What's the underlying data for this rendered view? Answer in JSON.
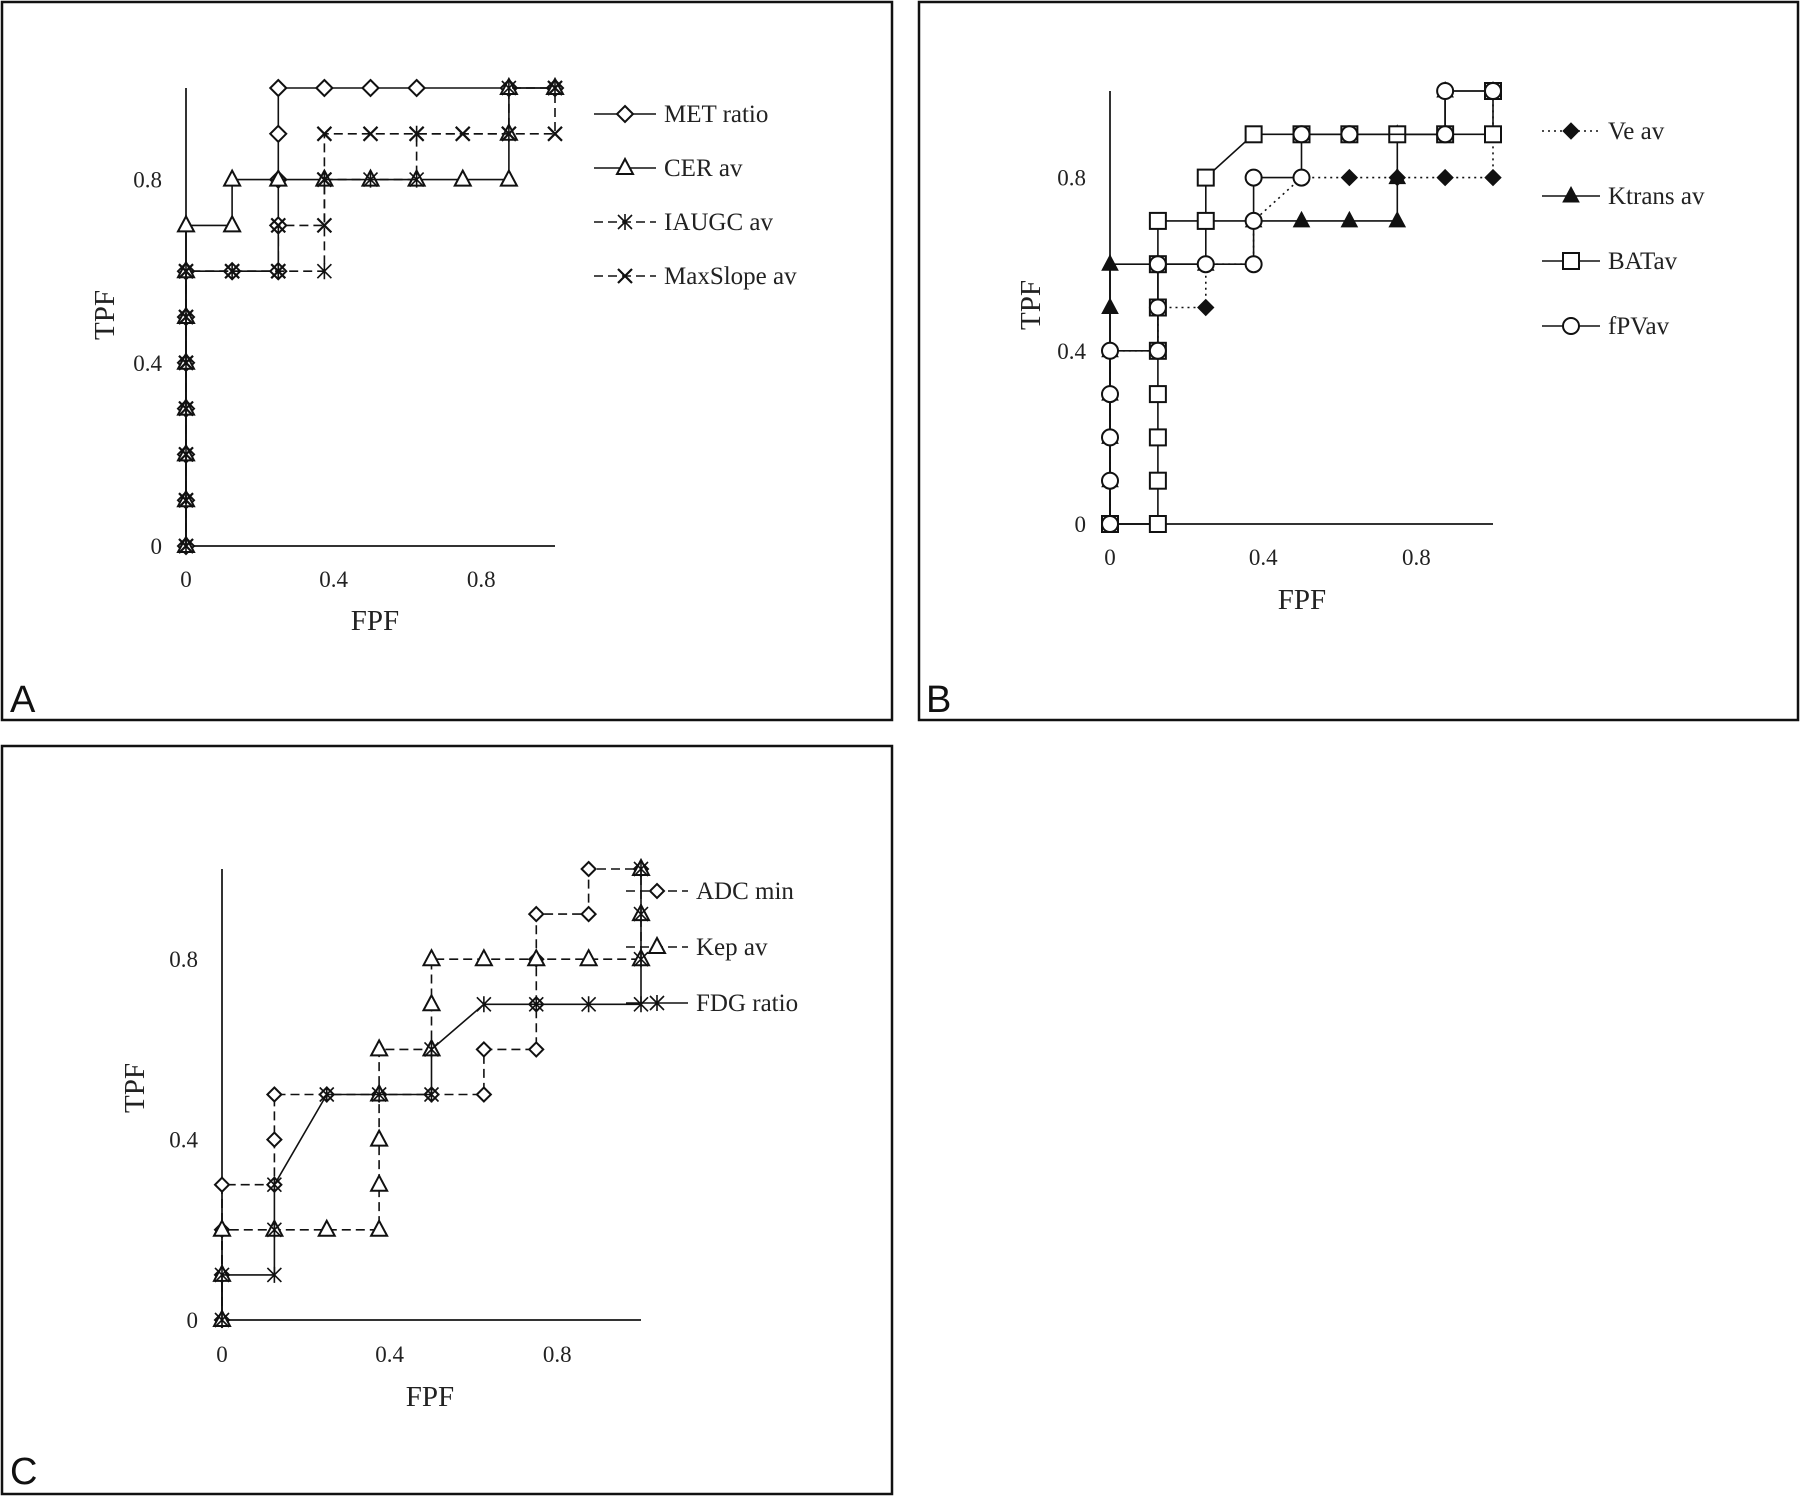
{
  "chart_data": [
    {
      "type": "line",
      "panel_label": "A",
      "xlabel": "FPF",
      "ylabel": "TPF",
      "xlim": [
        0,
        1
      ],
      "ylim": [
        0,
        1
      ],
      "xticks": [
        "0",
        "0.4",
        "0.8"
      ],
      "yticks": [
        "0",
        "0.4",
        "0.8"
      ],
      "grid": false,
      "legend_position": "right",
      "series": [
        {
          "name": "MET ratio",
          "marker": "diamond-open",
          "line": "solid",
          "points": [
            [
              0,
              0
            ],
            [
              0,
              0.1
            ],
            [
              0,
              0.2
            ],
            [
              0,
              0.3
            ],
            [
              0,
              0.4
            ],
            [
              0,
              0.5
            ],
            [
              0,
              0.6
            ],
            [
              0.125,
              0.6
            ],
            [
              0.25,
              0.6
            ],
            [
              0.25,
              0.7
            ],
            [
              0.25,
              0.8
            ],
            [
              0.25,
              0.9
            ],
            [
              0.25,
              1.0
            ],
            [
              0.375,
              1.0
            ],
            [
              0.5,
              1.0
            ],
            [
              0.625,
              1.0
            ],
            [
              0.875,
              1.0
            ],
            [
              1.0,
              1.0
            ]
          ]
        },
        {
          "name": "CER av",
          "marker": "triangle-open",
          "line": "solid",
          "points": [
            [
              0,
              0
            ],
            [
              0,
              0.1
            ],
            [
              0,
              0.2
            ],
            [
              0,
              0.3
            ],
            [
              0,
              0.4
            ],
            [
              0,
              0.5
            ],
            [
              0,
              0.6
            ],
            [
              0,
              0.7
            ],
            [
              0.125,
              0.7
            ],
            [
              0.125,
              0.8
            ],
            [
              0.25,
              0.8
            ],
            [
              0.375,
              0.8
            ],
            [
              0.5,
              0.8
            ],
            [
              0.625,
              0.8
            ],
            [
              0.75,
              0.8
            ],
            [
              0.875,
              0.8
            ],
            [
              0.875,
              0.9
            ],
            [
              0.875,
              1.0
            ],
            [
              1.0,
              1.0
            ]
          ]
        },
        {
          "name": "IAUGC av",
          "marker": "asterisk",
          "line": "dashed",
          "points": [
            [
              0,
              0
            ],
            [
              0,
              0.1
            ],
            [
              0,
              0.2
            ],
            [
              0,
              0.3
            ],
            [
              0,
              0.4
            ],
            [
              0,
              0.5
            ],
            [
              0,
              0.6
            ],
            [
              0.125,
              0.6
            ],
            [
              0.25,
              0.6
            ],
            [
              0.375,
              0.6
            ],
            [
              0.375,
              0.8
            ],
            [
              0.5,
              0.8
            ],
            [
              0.625,
              0.8
            ],
            [
              0.625,
              0.9
            ],
            [
              0.875,
              0.9
            ],
            [
              0.875,
              1.0
            ],
            [
              1.0,
              1.0
            ]
          ]
        },
        {
          "name": "MaxSlope av",
          "marker": "cross",
          "line": "dashed",
          "points": [
            [
              0,
              0
            ],
            [
              0,
              0.1
            ],
            [
              0,
              0.2
            ],
            [
              0,
              0.3
            ],
            [
              0,
              0.4
            ],
            [
              0,
              0.5
            ],
            [
              0,
              0.6
            ],
            [
              0.125,
              0.6
            ],
            [
              0.25,
              0.6
            ],
            [
              0.25,
              0.7
            ],
            [
              0.375,
              0.7
            ],
            [
              0.375,
              0.8
            ],
            [
              0.375,
              0.9
            ],
            [
              0.5,
              0.9
            ],
            [
              0.625,
              0.9
            ],
            [
              0.75,
              0.9
            ],
            [
              0.875,
              0.9
            ],
            [
              1.0,
              0.9
            ],
            [
              1.0,
              1.0
            ]
          ]
        }
      ]
    },
    {
      "type": "line",
      "panel_label": "B",
      "xlabel": "FPF",
      "ylabel": "TPF",
      "xlim": [
        0,
        1
      ],
      "ylim": [
        0,
        1
      ],
      "xticks": [
        "0",
        "0.4",
        "0.8"
      ],
      "yticks": [
        "0",
        "0.4",
        "0.8"
      ],
      "grid": false,
      "legend_position": "right",
      "series": [
        {
          "name": "Ve av",
          "marker": "diamond-filled",
          "line": "dotted",
          "points": [
            [
              0,
              0
            ],
            [
              0,
              0.1
            ],
            [
              0,
              0.2
            ],
            [
              0,
              0.3
            ],
            [
              0,
              0.4
            ],
            [
              0.125,
              0.4
            ],
            [
              0.125,
              0.5
            ],
            [
              0.25,
              0.5
            ],
            [
              0.25,
              0.6
            ],
            [
              0.375,
              0.6
            ],
            [
              0.375,
              0.7
            ],
            [
              0.5,
              0.8
            ],
            [
              0.625,
              0.8
            ],
            [
              0.75,
              0.8
            ],
            [
              0.875,
              0.8
            ],
            [
              1.0,
              0.8
            ],
            [
              1.0,
              0.9
            ],
            [
              1.0,
              1.0
            ]
          ]
        },
        {
          "name": "Ktrans av",
          "marker": "triangle-filled",
          "line": "solid",
          "points": [
            [
              0,
              0
            ],
            [
              0,
              0.1
            ],
            [
              0,
              0.2
            ],
            [
              0,
              0.3
            ],
            [
              0,
              0.4
            ],
            [
              0,
              0.5
            ],
            [
              0,
              0.6
            ],
            [
              0.125,
              0.6
            ],
            [
              0.25,
              0.6
            ],
            [
              0.25,
              0.7
            ],
            [
              0.375,
              0.7
            ],
            [
              0.5,
              0.7
            ],
            [
              0.625,
              0.7
            ],
            [
              0.75,
              0.7
            ],
            [
              0.75,
              0.8
            ],
            [
              0.75,
              0.9
            ],
            [
              0.875,
              0.9
            ],
            [
              0.875,
              1.0
            ],
            [
              1.0,
              1.0
            ]
          ]
        },
        {
          "name": "BATav",
          "marker": "square-open",
          "line": "solid",
          "points": [
            [
              0,
              0
            ],
            [
              0.125,
              0
            ],
            [
              0.125,
              0.1
            ],
            [
              0.125,
              0.2
            ],
            [
              0.125,
              0.3
            ],
            [
              0.125,
              0.4
            ],
            [
              0.125,
              0.5
            ],
            [
              0.125,
              0.6
            ],
            [
              0.125,
              0.7
            ],
            [
              0.25,
              0.7
            ],
            [
              0.25,
              0.8
            ],
            [
              0.375,
              0.9
            ],
            [
              0.5,
              0.9
            ],
            [
              0.625,
              0.9
            ],
            [
              0.75,
              0.9
            ],
            [
              0.875,
              0.9
            ],
            [
              1.0,
              0.9
            ],
            [
              1.0,
              1.0
            ]
          ]
        },
        {
          "name": "fPVav",
          "marker": "circle-open",
          "line": "solid",
          "points": [
            [
              0,
              0
            ],
            [
              0,
              0.1
            ],
            [
              0,
              0.2
            ],
            [
              0,
              0.3
            ],
            [
              0,
              0.4
            ],
            [
              0.125,
              0.4
            ],
            [
              0.125,
              0.5
            ],
            [
              0.125,
              0.6
            ],
            [
              0.25,
              0.6
            ],
            [
              0.375,
              0.6
            ],
            [
              0.375,
              0.7
            ],
            [
              0.375,
              0.8
            ],
            [
              0.5,
              0.8
            ],
            [
              0.5,
              0.9
            ],
            [
              0.625,
              0.9
            ],
            [
              0.875,
              0.9
            ],
            [
              0.875,
              1.0
            ],
            [
              1.0,
              1.0
            ]
          ]
        }
      ]
    },
    {
      "type": "line",
      "panel_label": "C",
      "xlabel": "FPF",
      "ylabel": "TPF",
      "xlim": [
        0,
        1
      ],
      "ylim": [
        0,
        1
      ],
      "xticks": [
        "0",
        "0.4",
        "0.8"
      ],
      "yticks": [
        "0",
        "0.4",
        "0.8"
      ],
      "grid": false,
      "legend_position": "right",
      "series": [
        {
          "name": "ADC min",
          "marker": "diamond-open-small",
          "line": "dashed",
          "points": [
            [
              0,
              0
            ],
            [
              0,
              0.1
            ],
            [
              0,
              0.2
            ],
            [
              0,
              0.3
            ],
            [
              0.125,
              0.3
            ],
            [
              0.125,
              0.4
            ],
            [
              0.125,
              0.5
            ],
            [
              0.25,
              0.5
            ],
            [
              0.375,
              0.5
            ],
            [
              0.5,
              0.5
            ],
            [
              0.625,
              0.5
            ],
            [
              0.625,
              0.6
            ],
            [
              0.75,
              0.6
            ],
            [
              0.75,
              0.7
            ],
            [
              0.75,
              0.8
            ],
            [
              0.75,
              0.9
            ],
            [
              0.875,
              0.9
            ],
            [
              0.875,
              1.0
            ],
            [
              1.0,
              1.0
            ]
          ]
        },
        {
          "name": "Kep av",
          "marker": "triangle-open",
          "line": "dashed",
          "points": [
            [
              0,
              0
            ],
            [
              0,
              0.1
            ],
            [
              0,
              0.2
            ],
            [
              0.125,
              0.2
            ],
            [
              0.25,
              0.2
            ],
            [
              0.375,
              0.2
            ],
            [
              0.375,
              0.3
            ],
            [
              0.375,
              0.4
            ],
            [
              0.375,
              0.5
            ],
            [
              0.375,
              0.6
            ],
            [
              0.5,
              0.6
            ],
            [
              0.5,
              0.7
            ],
            [
              0.5,
              0.8
            ],
            [
              0.625,
              0.8
            ],
            [
              0.75,
              0.8
            ],
            [
              0.875,
              0.8
            ],
            [
              1.0,
              0.8
            ],
            [
              1.0,
              0.9
            ],
            [
              1.0,
              1.0
            ]
          ]
        },
        {
          "name": "FDG ratio",
          "marker": "asterisk",
          "line": "solid",
          "points": [
            [
              0,
              0
            ],
            [
              0,
              0.1
            ],
            [
              0.125,
              0.1
            ],
            [
              0.125,
              0.2
            ],
            [
              0.125,
              0.3
            ],
            [
              0.25,
              0.5
            ],
            [
              0.375,
              0.5
            ],
            [
              0.5,
              0.5
            ],
            [
              0.5,
              0.6
            ],
            [
              0.625,
              0.7
            ],
            [
              0.75,
              0.7
            ],
            [
              0.875,
              0.7
            ],
            [
              1.0,
              0.7
            ],
            [
              1.0,
              0.8
            ],
            [
              1.0,
              0.9
            ],
            [
              1.0,
              1.0
            ]
          ]
        }
      ]
    }
  ]
}
